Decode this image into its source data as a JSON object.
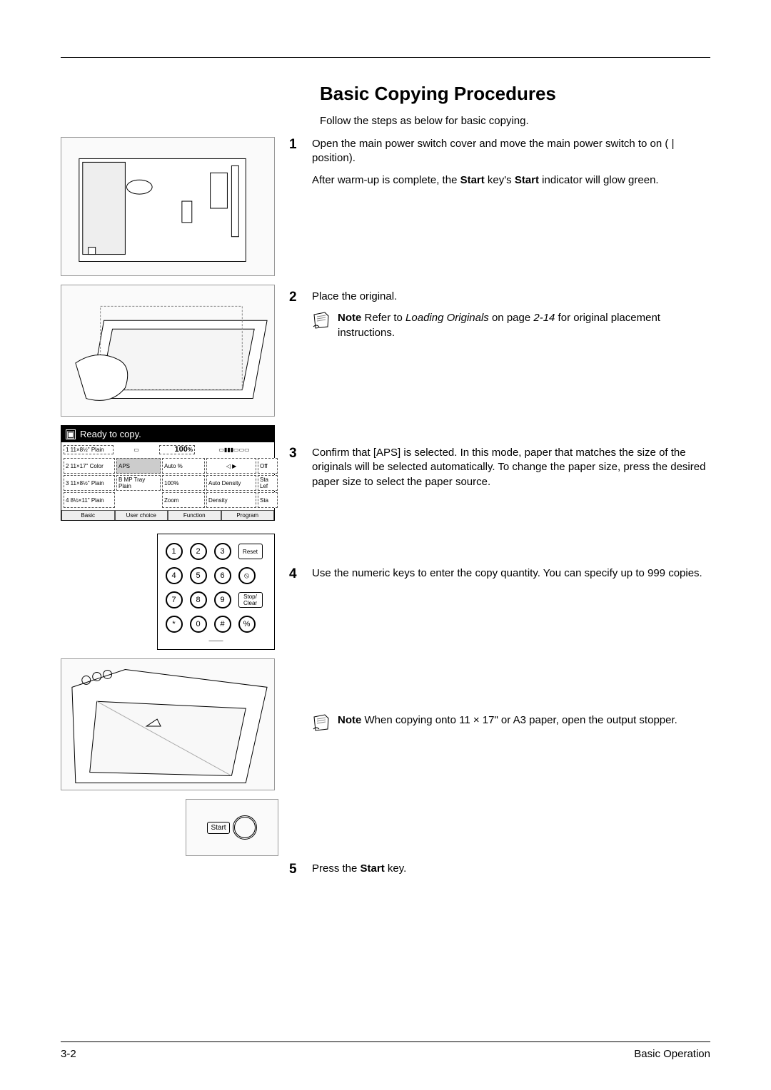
{
  "title": "Basic Copying Procedures",
  "intro": "Follow the steps as below for basic copying.",
  "steps": {
    "s1": {
      "num": "1",
      "p1a": "Open the main power switch cover and move the main power switch to on ( | position).",
      "p2a": "After warm-up is complete, the ",
      "p2b": "Start",
      "p2c": " key's ",
      "p2d": "Start",
      "p2e": " indicator will glow green."
    },
    "s2": {
      "num": "2",
      "p1": "Place the original.",
      "note_label": "Note",
      "note_a": "  Refer to ",
      "note_ital": "Loading Originals",
      "note_b": " on page ",
      "note_page": "2-14",
      "note_c": " for original placement instructions."
    },
    "s3": {
      "num": "3",
      "p1": "Confirm that [APS] is selected. In this mode, paper that matches the size of the originals will be selected automatically. To change the paper size, press the desired paper size to select the paper source."
    },
    "s4": {
      "num": "4",
      "p1": "Use the numeric keys to enter the copy quantity. You can specify up to 999 copies.",
      "note_label": "Note",
      "note_text": "  When copying onto 11 × 17\" or A3 paper, open the output stopper."
    },
    "s5": {
      "num": "5",
      "p1a": "Press the ",
      "p1b": "Start",
      "p1c": " key."
    }
  },
  "lcd": {
    "header": "Ready to copy.",
    "zoom_value": "100",
    "zoom_pct_suffix": "%",
    "rows": {
      "r1c1": "1  11×8½\"\n   Plain",
      "r2c1": "2  11×17\"\n   Color",
      "r2c2": "APS",
      "r2c3": "Auto %",
      "r2c5": "Off",
      "r3c1": "3  11×8½\"\n   Plain",
      "r3c2": "B  MP Tray\n    Plain",
      "r3c3": "100%",
      "r3c4": "Auto\nDensity",
      "r3c5": "Sta\nLef",
      "r4c1": "4  8½×11\"\n   Plain",
      "r4c3": "Zoom",
      "r4c4": "Density",
      "r4c5": "Sta"
    },
    "tabs": [
      "Basic",
      "User choice",
      "Function",
      "Program"
    ]
  },
  "keypad": {
    "keys": [
      "1",
      "2",
      "3",
      "4",
      "5",
      "6",
      "7",
      "8",
      "9",
      "*",
      "0",
      "#"
    ],
    "side": [
      "Reset",
      "⦸",
      "Stop/\nClear",
      "%"
    ]
  },
  "start_label": "Start",
  "footer": {
    "left": "3-2",
    "right": "Basic Operation"
  }
}
